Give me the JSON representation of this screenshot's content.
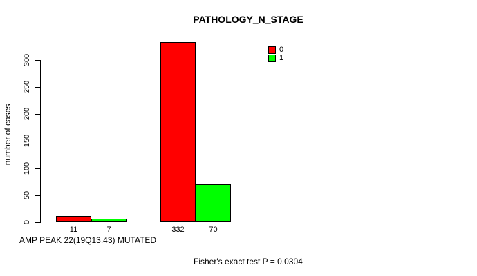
{
  "chart_data": {
    "type": "bar",
    "title": "PATHOLOGY_N_STAGE",
    "ylabel": "number of cases",
    "xlabel": "AMP PEAK 22(19Q13.43) MUTATED",
    "annotation": "Fisher's exact test P = 0.0304",
    "categories": [
      "",
      ""
    ],
    "series": [
      {
        "name": "0",
        "color": "#ff0000",
        "values": [
          11,
          332
        ]
      },
      {
        "name": "1",
        "color": "#00ff00",
        "values": [
          7,
          70
        ]
      }
    ],
    "yticks": [
      0,
      50,
      100,
      150,
      200,
      250,
      300
    ],
    "ylim": [
      0,
      340
    ],
    "grid": false,
    "bar_border_color": "#000000",
    "legend": {
      "position": "top-right",
      "entries": [
        {
          "label": "0",
          "color": "#ff0000"
        },
        {
          "label": "1",
          "color": "#00ff00"
        }
      ]
    }
  }
}
